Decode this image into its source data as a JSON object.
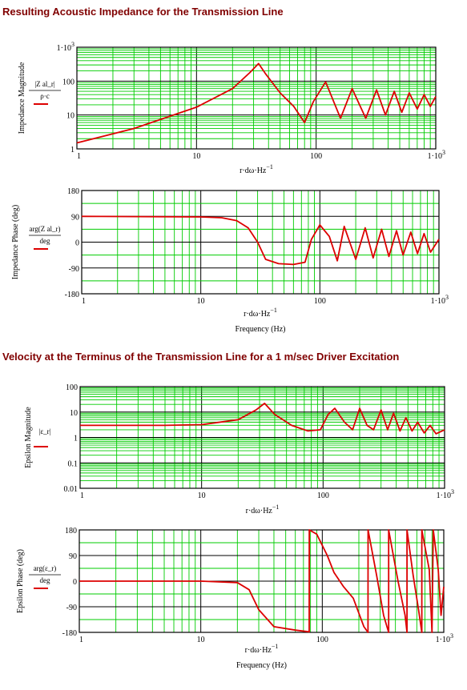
{
  "headings": {
    "impedance": "Resulting Acoustic Impedance for the Transmission Line",
    "velocity": "Velocity at the Terminus of the Transmission Line for a 1 m/sec Driver Excitation"
  },
  "colors": {
    "heading": "#800000",
    "grid": "#00cc00",
    "frame": "#000000",
    "trace": "#dd0000"
  },
  "chart_data": [
    {
      "type": "line",
      "id": "impedance-magnitude",
      "ylabel": "Impedance Magnitude",
      "xlabel": "r·dω·Hz⁻¹",
      "xscale": "log",
      "yscale": "log",
      "xlim": [
        1,
        1000
      ],
      "ylim": [
        1,
        1000
      ],
      "x_ticks": [
        "1",
        "10",
        "100",
        "1·10³"
      ],
      "y_ticks": [
        "1·10³",
        "100",
        "10",
        "1"
      ],
      "legend": {
        "expr": "|Z al_r|",
        "denominator": "ρ·c"
      },
      "series": [
        {
          "x": [
            1,
            3,
            10,
            20,
            28,
            33,
            38,
            50,
            65,
            80,
            95,
            120,
            160,
            200,
            260,
            320,
            380,
            450,
            520,
            600,
            700,
            800,
            900,
            1000
          ],
          "values": [
            1.5,
            4,
            17,
            60,
            180,
            330,
            160,
            45,
            18,
            6,
            25,
            95,
            8,
            60,
            8,
            55,
            10,
            50,
            12,
            45,
            15,
            40,
            18,
            35
          ]
        }
      ]
    },
    {
      "type": "line",
      "id": "impedance-phase",
      "ylabel": "Impedance Phase (deg)",
      "xlabel": "r·dω·Hz⁻¹",
      "xlabel2": "Frequency (Hz)",
      "xscale": "log",
      "yscale": "linear",
      "xlim": [
        1,
        1000
      ],
      "ylim": [
        -180,
        180
      ],
      "x_ticks": [
        "1",
        "10",
        "100",
        "1·10³"
      ],
      "y_ticks": [
        "180",
        "90",
        "0",
        "-90",
        "-180"
      ],
      "legend": {
        "expr": "arg(Z al_r)",
        "denominator": "deg"
      },
      "series": [
        {
          "x": [
            1,
            3,
            10,
            15,
            20,
            25,
            30,
            35,
            45,
            60,
            75,
            85,
            100,
            120,
            140,
            160,
            200,
            240,
            280,
            330,
            380,
            440,
            500,
            580,
            660,
            750,
            850,
            1000
          ],
          "values": [
            90,
            89,
            88,
            85,
            75,
            50,
            0,
            -60,
            -75,
            -78,
            -70,
            10,
            60,
            20,
            -65,
            55,
            -60,
            50,
            -55,
            45,
            -50,
            40,
            -45,
            35,
            -40,
            30,
            -35,
            10
          ]
        }
      ]
    },
    {
      "type": "line",
      "id": "epsilon-magnitude",
      "ylabel": "Epsilon Magnitude",
      "xlabel": "r·dω·Hz⁻¹",
      "xscale": "log",
      "yscale": "log",
      "xlim": [
        1,
        1000
      ],
      "ylim": [
        0.01,
        100
      ],
      "x_ticks": [
        "1",
        "10",
        "100",
        "1·10³"
      ],
      "y_ticks": [
        "100",
        "10",
        "1",
        "0.1",
        "0.01"
      ],
      "legend": {
        "expr": "|ε_r|",
        "denominator": ""
      },
      "series": [
        {
          "x": [
            1,
            5,
            10,
            20,
            28,
            33,
            40,
            55,
            75,
            95,
            110,
            125,
            150,
            175,
            200,
            230,
            260,
            300,
            340,
            380,
            430,
            480,
            540,
            600,
            680,
            760,
            850,
            1000
          ],
          "values": [
            3,
            3,
            3.2,
            5,
            12,
            22,
            8,
            3,
            1.8,
            2,
            8,
            14,
            4,
            2,
            14,
            3,
            2,
            12,
            2,
            9,
            1.8,
            6,
            1.8,
            4,
            1.5,
            3,
            1.4,
            2
          ]
        }
      ]
    },
    {
      "type": "line",
      "id": "epsilon-phase",
      "ylabel": "Epsilon Phase (deg)",
      "xlabel": "r·dω·Hz⁻¹",
      "xlabel2": "Frequency (Hz)",
      "xscale": "log",
      "yscale": "linear",
      "xlim": [
        1,
        1000
      ],
      "ylim": [
        -180,
        180
      ],
      "x_ticks": [
        "1",
        "10",
        "100",
        "1·10³"
      ],
      "y_ticks": [
        "180",
        "90",
        "0",
        "-90",
        "-180"
      ],
      "legend": {
        "expr": "arg(ε_r)",
        "denominator": "deg"
      },
      "series": [
        {
          "x": [
            1,
            10,
            20,
            25,
            30,
            40,
            60,
            78,
            78.1,
            90,
            110,
            125,
            150,
            180,
            220,
            238,
            238.1,
            280,
            320,
            352,
            352.1,
            420,
            480,
            498,
            498.1,
            560,
            620,
            660,
            660.1,
            760,
            800,
            820,
            820.1,
            900,
            950,
            1000
          ],
          "values": [
            0,
            0,
            -5,
            -30,
            -100,
            -160,
            -172,
            -178,
            180,
            165,
            90,
            30,
            -20,
            -60,
            -160,
            -180,
            180,
            20,
            -120,
            -180,
            180,
            0,
            -120,
            -180,
            180,
            20,
            -100,
            -180,
            180,
            40,
            -180,
            180,
            180,
            40,
            -120,
            -20
          ]
        }
      ]
    }
  ]
}
